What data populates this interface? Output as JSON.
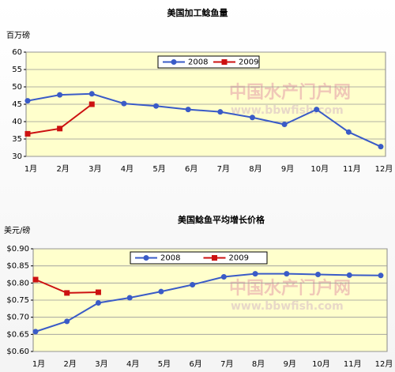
{
  "chart_data": [
    {
      "type": "line",
      "title": "美国加工鲶鱼量",
      "y_label": "百万磅",
      "categories": [
        "1月",
        "2月",
        "3月",
        "4月",
        "5月",
        "6月",
        "7月",
        "8月",
        "9月",
        "10月",
        "11月",
        "12月"
      ],
      "series": [
        {
          "name": "2008",
          "color": "#3a5bc7",
          "marker": "circle",
          "values": [
            46,
            47.7,
            48,
            45.2,
            44.5,
            43.5,
            42.8,
            41.2,
            39.2,
            43.5,
            37,
            32.8
          ]
        },
        {
          "name": "2009",
          "color": "#cc1111",
          "marker": "square",
          "values": [
            36.5,
            38,
            45,
            null,
            null,
            null,
            null,
            null,
            null,
            null,
            null,
            null
          ]
        }
      ],
      "ylim": [
        30,
        60
      ],
      "yticks": [
        30,
        35,
        40,
        45,
        50,
        55,
        60
      ],
      "grid": true,
      "legend": "top",
      "watermark": [
        "中国水产门户网",
        "www.bbwfish.com"
      ]
    },
    {
      "type": "line",
      "title": "美国鲶鱼平均增长价格",
      "y_label": "美元/磅",
      "categories": [
        "1月",
        "2月",
        "3月",
        "4月",
        "5月",
        "6月",
        "7月",
        "8月",
        "9月",
        "10月",
        "11月",
        "12月"
      ],
      "series": [
        {
          "name": "2008",
          "color": "#3a5bc7",
          "marker": "circle",
          "values": [
            0.658,
            0.688,
            0.742,
            0.757,
            0.775,
            0.795,
            0.818,
            0.827,
            0.827,
            0.825,
            0.823,
            0.822
          ]
        },
        {
          "name": "2009",
          "color": "#cc1111",
          "marker": "square",
          "values": [
            0.81,
            0.771,
            0.773,
            null,
            null,
            null,
            null,
            null,
            null,
            null,
            null,
            null
          ]
        }
      ],
      "ylim": [
        0.6,
        0.9
      ],
      "yticks": [
        {
          "value": 0.6,
          "label": "$0.60"
        },
        {
          "value": 0.65,
          "label": "$0.65"
        },
        {
          "value": 0.7,
          "label": "$0.70"
        },
        {
          "value": 0.75,
          "label": "$0.75"
        },
        {
          "value": 0.8,
          "label": "$0.80"
        },
        {
          "value": 0.85,
          "label": "$0.85"
        },
        {
          "value": 0.9,
          "label": "$0.90"
        }
      ],
      "grid": true,
      "legend": "top",
      "watermark": [
        "中国水产门户网",
        "www.bbwfish.com"
      ]
    }
  ]
}
